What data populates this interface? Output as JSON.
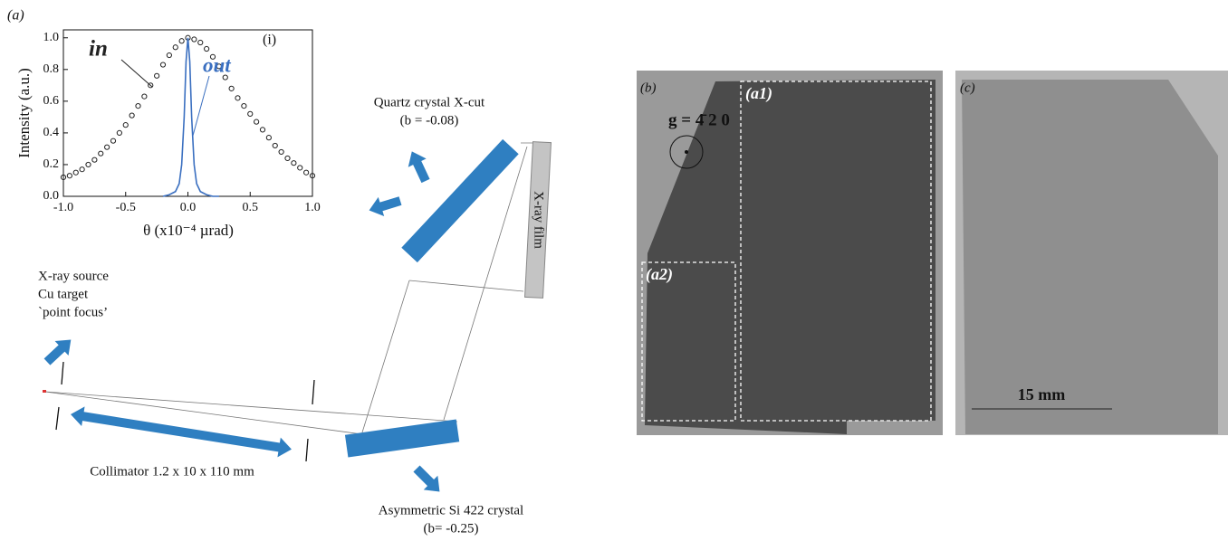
{
  "chart_data": {
    "type": "line",
    "panel_label": "(a)",
    "inset_label": "(i)",
    "x_label": "θ (x10⁻⁴ µrad)",
    "y_label": "Intensity (a.u.)",
    "xlim": [
      -1,
      1
    ],
    "ylim": [
      0,
      1.05
    ],
    "xticks": [
      {
        "value": -1,
        "label": "-1.0"
      },
      -0.5,
      {
        "value": 0,
        "label": "0.0"
      },
      0.5,
      {
        "value": 1,
        "label": "1.0"
      }
    ],
    "yticks": [
      {
        "value": 0,
        "label": "0.0"
      },
      0.2,
      0.4,
      0.6,
      0.8,
      {
        "value": 1,
        "label": "1.0"
      }
    ],
    "series": [
      {
        "name": "in",
        "color": "#222222",
        "style": "circles",
        "x": [
          -1,
          -0.95,
          -0.9,
          -0.85,
          -0.8,
          -0.75,
          -0.7,
          -0.65,
          -0.6,
          -0.55,
          -0.5,
          -0.45,
          -0.4,
          -0.35,
          -0.3,
          -0.25,
          -0.2,
          -0.15,
          -0.1,
          -0.05,
          0,
          0.05,
          0.1,
          0.15,
          0.2,
          0.25,
          0.3,
          0.35,
          0.4,
          0.45,
          0.5,
          0.55,
          0.6,
          0.65,
          0.7,
          0.75,
          0.8,
          0.85,
          0.9,
          0.95,
          1
        ],
        "values": [
          0.12,
          0.13,
          0.15,
          0.17,
          0.2,
          0.23,
          0.27,
          0.31,
          0.35,
          0.4,
          0.45,
          0.51,
          0.57,
          0.63,
          0.7,
          0.76,
          0.83,
          0.89,
          0.94,
          0.98,
          1.0,
          0.99,
          0.97,
          0.93,
          0.88,
          0.82,
          0.75,
          0.68,
          0.62,
          0.57,
          0.52,
          0.47,
          0.42,
          0.37,
          0.32,
          0.28,
          0.24,
          0.21,
          0.18,
          0.15,
          0.13
        ]
      },
      {
        "name": "out",
        "color": "#3a6fc0",
        "style": "line",
        "x": [
          -0.2,
          -0.15,
          -0.1,
          -0.07,
          -0.05,
          -0.03,
          -0.015,
          0,
          0.015,
          0.03,
          0.05,
          0.07,
          0.1,
          0.15,
          0.2,
          0.25
        ],
        "values": [
          0,
          0.01,
          0.03,
          0.08,
          0.2,
          0.5,
          0.85,
          1.0,
          0.85,
          0.5,
          0.2,
          0.08,
          0.03,
          0.01,
          0,
          0
        ]
      }
    ]
  },
  "diagram": {
    "quartz": "Quartz crystal X-cut",
    "quartz_b": "(b = -0.08)",
    "film": "X-ray film",
    "source": [
      "X-ray source",
      "Cu target",
      "`point focus’"
    ],
    "collimator": "Collimator 1.2 x 10 x 110 mm",
    "si": "Asymmetric Si 422 crystal",
    "si_b": "(b= -0.25)"
  },
  "panels": {
    "b": {
      "label": "(b)",
      "a1": "(a1)",
      "a2": "(a2)",
      "g": "g =  4̄ 2 0"
    },
    "c": {
      "label": "(c)",
      "scale": "15 mm"
    }
  }
}
